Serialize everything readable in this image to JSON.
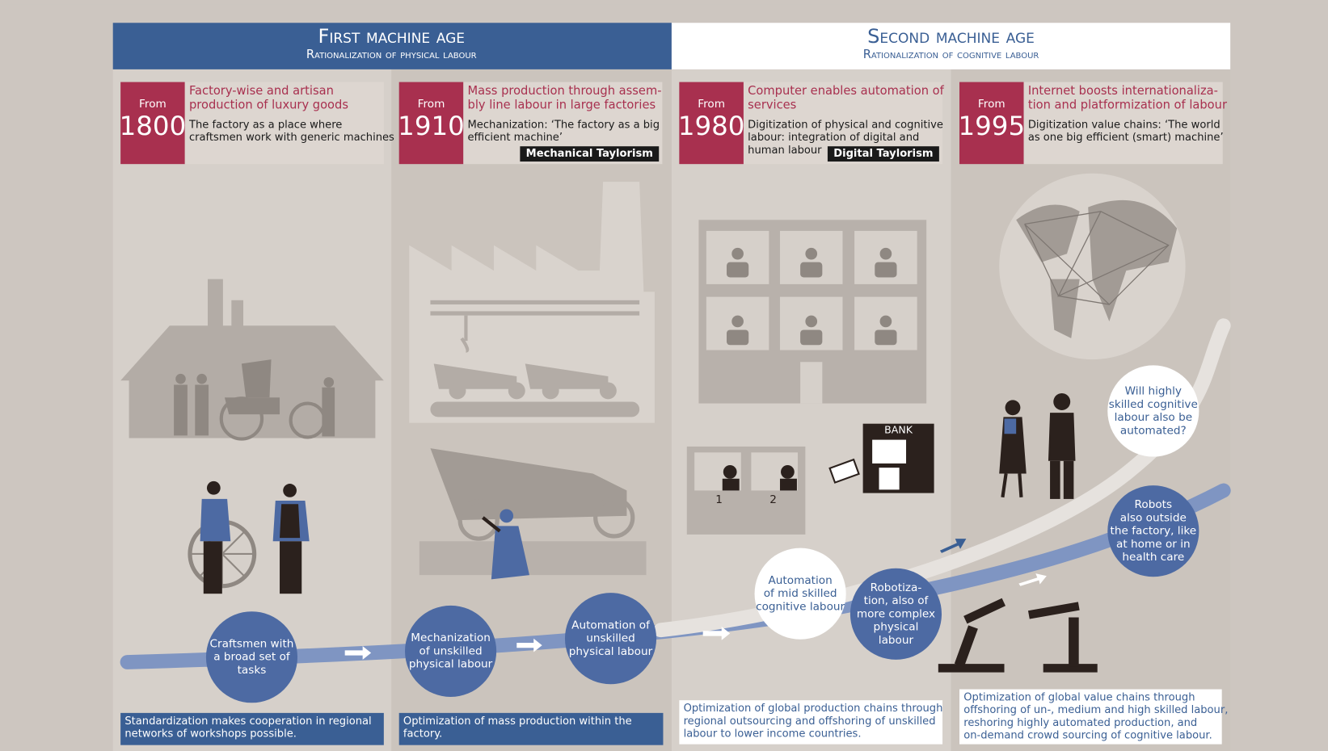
{
  "header": {
    "first": {
      "title": "First machine age",
      "subtitle": "Rationalization of physical labour"
    },
    "second": {
      "title": "Second machine age",
      "subtitle": "Rationalization of cognitive labour"
    }
  },
  "eras": [
    {
      "from": "From",
      "year": "1800",
      "title": [
        "Factory-wise and artisan",
        "production of luxury goods"
      ],
      "description": [
        "The factory as a place where",
        "craftsmen work with generic machines"
      ]
    },
    {
      "from": "From",
      "year": "1910",
      "title": [
        "Mass production through assem-",
        "bly line labour in large factories"
      ],
      "description": [
        "Mechanization: ‘The factory as a big",
        "efficient machine’"
      ],
      "tag": "Mechanical Taylorism"
    },
    {
      "from": "From",
      "year": "1980",
      "title": [
        "Computer enables automation of",
        "services"
      ],
      "description": [
        "Digitization of physical and cognitive",
        "labour: integration of digital and",
        "human labour"
      ],
      "tag": "Digital Taylorism"
    },
    {
      "from": "From",
      "year": "1995",
      "title": [
        "Internet boosts internationaliza-",
        "tion and platformization of labour"
      ],
      "description": [
        "Digitization value chains: ‘The world",
        "as one big efficient (smart) machine’"
      ]
    }
  ],
  "bubbles": [
    {
      "style": "blue",
      "lines": [
        "Craftsmen with",
        "a broad set of",
        "tasks"
      ]
    },
    {
      "style": "blue",
      "lines": [
        "Mechanization",
        "of unskilled",
        "physical labour"
      ]
    },
    {
      "style": "blue",
      "lines": [
        "Automation of",
        "unskilled",
        "physical labour"
      ]
    },
    {
      "style": "white",
      "lines": [
        "Automation",
        "of mid skilled",
        "cognitive labour"
      ]
    },
    {
      "style": "blue",
      "lines": [
        "Robotiza-",
        "tion, also of",
        "more complex",
        "physical",
        "labour"
      ]
    },
    {
      "style": "white",
      "lines": [
        "Will highly",
        "skilled cognitive",
        "labour also be",
        "automated?"
      ]
    },
    {
      "style": "blue",
      "lines": [
        "Robots",
        "also outside",
        "the factory, like",
        "at home or in",
        "health care"
      ]
    }
  ],
  "notes": [
    {
      "style": "blue",
      "lines": [
        "Standardization makes cooperation in regional",
        "networks of workshops possible."
      ]
    },
    {
      "style": "blue",
      "lines": [
        "Optimization of mass production within the",
        "factory."
      ]
    },
    {
      "style": "white",
      "lines": [
        "Optimization of global production chains through",
        "regional outsourcing and offshoring of unskilled",
        "labour to lower income countries."
      ]
    },
    {
      "style": "white",
      "lines": [
        "Optimization of global value chains through",
        "offshoring of un-, medium and high skilled labour,",
        "reshoring highly automated production, and",
        "on-demand crowd sourcing of cognitive labour."
      ]
    }
  ],
  "labels": {
    "bank": "BANK",
    "desk1": "1",
    "desk2": "2"
  }
}
